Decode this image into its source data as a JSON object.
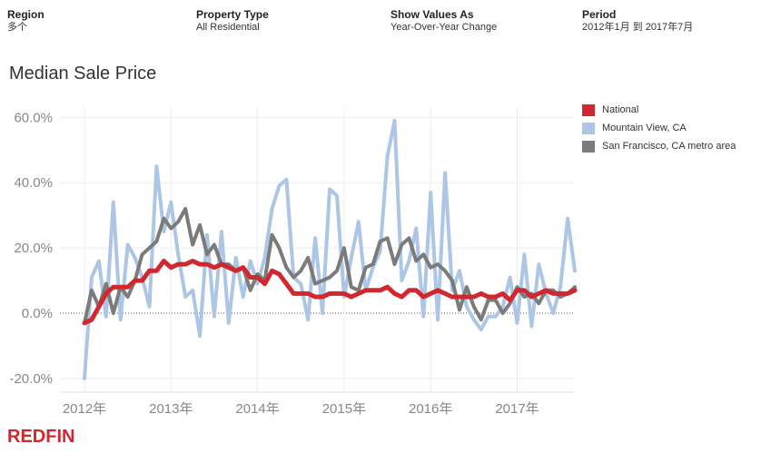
{
  "filters": {
    "region": {
      "label": "Region",
      "value": "多个"
    },
    "property_type": {
      "label": "Property Type",
      "value": "All Residential"
    },
    "show_values_as": {
      "label": "Show Values As",
      "value": "Year-Over-Year Change"
    },
    "period": {
      "label": "Period",
      "value": "2012年1月 到 2017年7月"
    }
  },
  "brand": {
    "logo_text": "REDFIN",
    "color": "#d0282e"
  },
  "chart_data": {
    "type": "line",
    "title": "Median Sale Price",
    "xlabel": "",
    "ylabel": "",
    "x_start": "2012-01",
    "x_end": "2017-07",
    "x_ticks": [
      {
        "label": "2012年",
        "value": 2012.0
      },
      {
        "label": "2013年",
        "value": 2013.0
      },
      {
        "label": "2014年",
        "value": 2014.0
      },
      {
        "label": "2015年",
        "value": 2015.0
      },
      {
        "label": "2016年",
        "value": 2016.0
      },
      {
        "label": "2017年",
        "value": 2017.0
      }
    ],
    "y_ticks": [
      {
        "label": "60.0%",
        "value": 60
      },
      {
        "label": "40.0%",
        "value": 40
      },
      {
        "label": "20.0%",
        "value": 20
      },
      {
        "label": "0.0%",
        "value": 0
      },
      {
        "label": "-20.0%",
        "value": -20
      }
    ],
    "ylim": [
      -22,
      64
    ],
    "grid": true,
    "legend_position": "right",
    "series": [
      {
        "name": "Mountain View, CA",
        "color": "#adc6e5",
        "values": [
          -20,
          11,
          16,
          -1,
          34,
          -2,
          21,
          17,
          11,
          2,
          45,
          25,
          34,
          18,
          5,
          7,
          -7,
          24,
          -1,
          25,
          -3,
          17,
          5,
          16,
          9,
          17,
          32,
          39,
          41,
          11,
          9,
          -2,
          23,
          0,
          38,
          36,
          5,
          17,
          28,
          7,
          14,
          19,
          48,
          59,
          10,
          16,
          26,
          -1,
          37,
          -2,
          43,
          7,
          13,
          2,
          -2,
          -5,
          -1,
          -1,
          2,
          11,
          -3,
          18,
          -4,
          15,
          6,
          0,
          8,
          29,
          13
        ]
      },
      {
        "name": "San Francisco, CA metro area",
        "color": "#7b7b7b",
        "values": [
          -3,
          7,
          2,
          9,
          0,
          8,
          5,
          10,
          18,
          20,
          22,
          29,
          26,
          28,
          32,
          21,
          27,
          18,
          21,
          15,
          15,
          13,
          14,
          7,
          12,
          10,
          24,
          20,
          14,
          11,
          13,
          17,
          9,
          10,
          11,
          13,
          20,
          8,
          7,
          14,
          15,
          22,
          23,
          15,
          21,
          23,
          16,
          18,
          14,
          15,
          13,
          10,
          1,
          8,
          2,
          -2,
          4,
          4,
          0,
          3,
          8,
          5,
          6,
          3,
          7,
          7,
          5,
          6,
          8
        ]
      },
      {
        "name": "National",
        "color": "#d0282e",
        "values": [
          -3,
          -2,
          2,
          6,
          8,
          8,
          8,
          10,
          10,
          13,
          13,
          16,
          14,
          15,
          15,
          16,
          15,
          15,
          14,
          15,
          14,
          13,
          14,
          11,
          11,
          9,
          13,
          12,
          9,
          6,
          6,
          6,
          5,
          5,
          6,
          6,
          6,
          5,
          6,
          7,
          7,
          7,
          8,
          6,
          5,
          7,
          7,
          5,
          6,
          7,
          6,
          5,
          5,
          5,
          5,
          6,
          5,
          5,
          6,
          4,
          7,
          7,
          5,
          6,
          7,
          6,
          6,
          6,
          7
        ]
      }
    ]
  }
}
